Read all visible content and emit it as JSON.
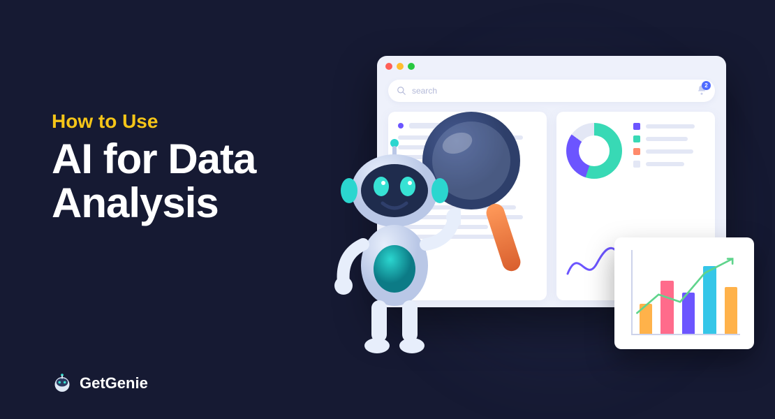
{
  "theme": {
    "background": "#161a33",
    "text_primary": "#ffffff",
    "accent_yellow": "#f5c518",
    "glow": "rgba(60,70,120,0.25)"
  },
  "headline": {
    "subtitle": "How to Use",
    "subtitle_color": "#f5c518",
    "subtitle_fontsize": 28,
    "title_line1": "AI for Data",
    "title_line2": "Analysis",
    "title_color": "#ffffff",
    "title_fontsize": 60
  },
  "brand": {
    "name": "GetGenie",
    "logo_colors": {
      "body": "#dfe9f6",
      "face": "#2a3a62",
      "eye": "#36e0d0"
    }
  },
  "window": {
    "background": "#eef1fb",
    "titlebar_dots": [
      "#ff5f57",
      "#ffbd2e",
      "#28c840"
    ],
    "search": {
      "placeholder": "search",
      "placeholder_color": "#b3b9d8",
      "icon_color": "#b3b9d8"
    },
    "notification": {
      "count": 2,
      "badge_bg": "#4f6bff",
      "bell_color": "#c9cfec"
    },
    "panel_left": {
      "header_dot": "#6c55ff",
      "skeleton_color": "#e3e7f5",
      "mini_rings": [
        "#38d9b5",
        "#ff8a6b",
        "#6c55ff"
      ]
    },
    "panel_right": {
      "donut": {
        "seg1_color": "#38d9b5",
        "seg1_pct": 55,
        "seg2_color": "#6c55ff",
        "seg2_pct": 30,
        "seg3_color": "#e3e7f5",
        "seg3_pct": 15
      },
      "legend_colors": [
        "#6c55ff",
        "#38d9b5",
        "#ff8a6b"
      ],
      "skeleton_color": "#e3e7f5",
      "wave_color": "#6c55ff"
    }
  },
  "chart_card": {
    "type": "bar",
    "axis_color": "#cdd3ea",
    "trend_color": "#5fd48c",
    "bars": [
      {
        "height_pct": 40,
        "color": "#ffb24a"
      },
      {
        "height_pct": 70,
        "color": "#ff6b8b"
      },
      {
        "height_pct": 55,
        "color": "#6c55ff"
      },
      {
        "height_pct": 90,
        "color": "#35c6e8"
      },
      {
        "height_pct": 62,
        "color": "#ffb24a"
      }
    ]
  },
  "robot": {
    "body_light": "#e7eefb",
    "body_shadow": "#b9c7e6",
    "accent": "#2bd6cf",
    "accent_dark": "#0c7b86",
    "face_bg": "#1f2c4d",
    "eye": "#37e2d4",
    "mouth": "#2f3f6b"
  },
  "magnifier": {
    "ring_outer": "#2e3f6a",
    "ring_inner": "#45598f",
    "glass": "rgba(200,215,245,0.18)",
    "handle_top": "#ff9a5a",
    "handle_bottom": "#d95f2e"
  }
}
